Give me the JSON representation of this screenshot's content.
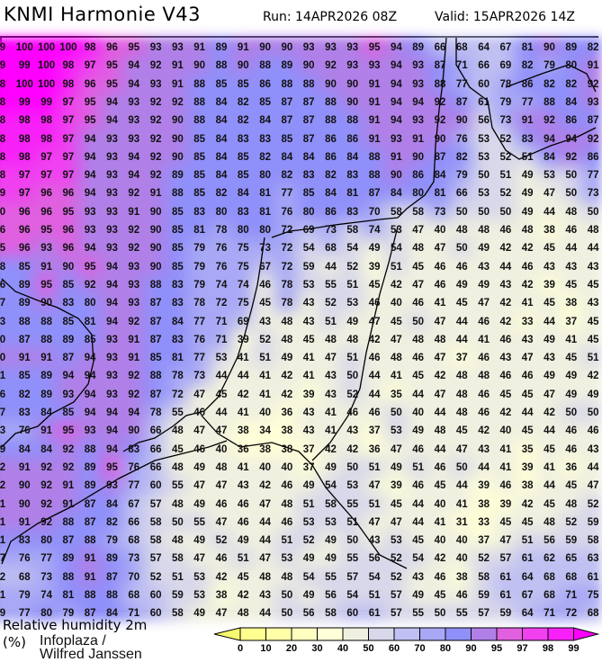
{
  "header": {
    "title": "KNMI Harmonie V43",
    "run": "Run: 14APR2026 08Z",
    "valid": "Valid: 15APR2026 14Z"
  },
  "legend": {
    "title_line1": "Relative humidity 2m",
    "title_line2": "(%)",
    "ticks": [
      "0",
      "10",
      "20",
      "30",
      "40",
      "50",
      "60",
      "70",
      "80",
      "90",
      "95",
      "97",
      "98",
      "99"
    ],
    "colors": [
      "#ffff90",
      "#ffffa8",
      "#ffffc0",
      "#ffffd8",
      "#f0f0e0",
      "#d8d8ea",
      "#c0c0f2",
      "#a8a8f6",
      "#9090fa",
      "#b080e8",
      "#e060e0",
      "#f040f0",
      "#f820f8"
    ],
    "low_color": "#f8f870",
    "high_color": "#ff00ff"
  },
  "map": {
    "credit": "Infoplaza / Wilfred Janssen",
    "coastline_color": "#000000",
    "grid": [
      [
        "9",
        "100",
        "100",
        "100",
        "98",
        "96",
        "95",
        "93",
        "93",
        "91",
        "89",
        "91",
        "90",
        "90",
        "93",
        "93",
        "93",
        "95",
        "94",
        "89",
        "66",
        "68",
        "64",
        "67",
        "81",
        "90",
        "89",
        "82"
      ],
      [
        "9",
        "99",
        "100",
        "98",
        "97",
        "95",
        "94",
        "92",
        "91",
        "90",
        "88",
        "90",
        "88",
        "89",
        "90",
        "92",
        "93",
        "93",
        "94",
        "93",
        "87",
        "71",
        "66",
        "69",
        "82",
        "79",
        "80",
        "91"
      ],
      [
        "8",
        "100",
        "100",
        "98",
        "96",
        "95",
        "94",
        "93",
        "91",
        "88",
        "85",
        "85",
        "86",
        "88",
        "88",
        "90",
        "90",
        "91",
        "94",
        "93",
        "88",
        "77",
        "60",
        "78",
        "86",
        "82",
        "82",
        "92"
      ],
      [
        "8",
        "99",
        "99",
        "97",
        "95",
        "94",
        "93",
        "92",
        "92",
        "88",
        "84",
        "82",
        "85",
        "87",
        "87",
        "88",
        "90",
        "91",
        "94",
        "94",
        "92",
        "87",
        "61",
        "79",
        "77",
        "88",
        "84",
        "93"
      ],
      [
        "8",
        "98",
        "98",
        "97",
        "95",
        "94",
        "93",
        "92",
        "90",
        "88",
        "84",
        "82",
        "84",
        "87",
        "87",
        "88",
        "88",
        "91",
        "94",
        "93",
        "92",
        "90",
        "56",
        "73",
        "91",
        "92",
        "86",
        "87"
      ],
      [
        "8",
        "98",
        "98",
        "97",
        "94",
        "93",
        "93",
        "92",
        "90",
        "85",
        "84",
        "83",
        "83",
        "85",
        "87",
        "86",
        "86",
        "91",
        "93",
        "91",
        "90",
        "76",
        "53",
        "52",
        "83",
        "94",
        "94",
        "92"
      ],
      [
        "8",
        "98",
        "97",
        "97",
        "94",
        "93",
        "94",
        "92",
        "90",
        "85",
        "84",
        "85",
        "82",
        "84",
        "84",
        "86",
        "84",
        "88",
        "91",
        "90",
        "87",
        "82",
        "53",
        "52",
        "51",
        "84",
        "92",
        "86"
      ],
      [
        "8",
        "97",
        "97",
        "97",
        "94",
        "93",
        "94",
        "92",
        "89",
        "85",
        "84",
        "85",
        "80",
        "82",
        "83",
        "82",
        "83",
        "88",
        "90",
        "86",
        "84",
        "79",
        "50",
        "51",
        "49",
        "53",
        "50",
        "77"
      ],
      [
        "9",
        "97",
        "96",
        "96",
        "94",
        "93",
        "92",
        "91",
        "88",
        "85",
        "82",
        "84",
        "81",
        "77",
        "85",
        "84",
        "81",
        "87",
        "84",
        "80",
        "81",
        "66",
        "53",
        "52",
        "49",
        "47",
        "50",
        "73"
      ],
      [
        "0",
        "96",
        "96",
        "95",
        "93",
        "93",
        "91",
        "90",
        "85",
        "83",
        "80",
        "83",
        "81",
        "76",
        "80",
        "86",
        "83",
        "70",
        "58",
        "58",
        "73",
        "50",
        "50",
        "50",
        "49",
        "44",
        "48",
        "50"
      ],
      [
        "6",
        "96",
        "95",
        "96",
        "93",
        "93",
        "92",
        "90",
        "85",
        "81",
        "78",
        "80",
        "80",
        "72",
        "69",
        "73",
        "58",
        "74",
        "53",
        "47",
        "40",
        "48",
        "48",
        "46",
        "48",
        "38",
        "46",
        "48"
      ],
      [
        "5",
        "96",
        "93",
        "96",
        "94",
        "93",
        "92",
        "90",
        "85",
        "79",
        "76",
        "75",
        "73",
        "72",
        "54",
        "68",
        "54",
        "49",
        "54",
        "48",
        "47",
        "50",
        "49",
        "42",
        "42",
        "45",
        "44",
        "44"
      ],
      [
        "8",
        "85",
        "91",
        "90",
        "95",
        "94",
        "93",
        "90",
        "85",
        "79",
        "76",
        "75",
        "67",
        "72",
        "59",
        "44",
        "52",
        "39",
        "51",
        "45",
        "46",
        "46",
        "43",
        "44",
        "46",
        "43",
        "43",
        "43"
      ],
      [
        "6",
        "89",
        "95",
        "85",
        "92",
        "94",
        "93",
        "88",
        "83",
        "79",
        "74",
        "74",
        "46",
        "78",
        "53",
        "55",
        "51",
        "45",
        "42",
        "47",
        "46",
        "49",
        "49",
        "43",
        "42",
        "39",
        "45",
        "45"
      ],
      [
        "7",
        "89",
        "90",
        "83",
        "80",
        "94",
        "93",
        "87",
        "83",
        "78",
        "72",
        "75",
        "45",
        "78",
        "43",
        "52",
        "53",
        "46",
        "40",
        "46",
        "41",
        "45",
        "47",
        "42",
        "41",
        "45",
        "38",
        "43"
      ],
      [
        "3",
        "88",
        "88",
        "85",
        "81",
        "94",
        "92",
        "87",
        "84",
        "77",
        "71",
        "69",
        "43",
        "48",
        "43",
        "51",
        "49",
        "47",
        "45",
        "50",
        "47",
        "44",
        "46",
        "42",
        "33",
        "44",
        "37",
        "45"
      ],
      [
        "0",
        "87",
        "88",
        "89",
        "85",
        "93",
        "91",
        "87",
        "83",
        "76",
        "71",
        "39",
        "52",
        "48",
        "45",
        "48",
        "48",
        "42",
        "47",
        "48",
        "48",
        "44",
        "41",
        "46",
        "43",
        "49",
        "41",
        "45"
      ],
      [
        "0",
        "91",
        "91",
        "87",
        "94",
        "93",
        "91",
        "85",
        "81",
        "77",
        "53",
        "41",
        "51",
        "49",
        "41",
        "47",
        "51",
        "46",
        "48",
        "46",
        "47",
        "37",
        "46",
        "43",
        "47",
        "43",
        "45",
        "51"
      ],
      [
        "1",
        "85",
        "89",
        "94",
        "94",
        "93",
        "92",
        "88",
        "78",
        "73",
        "44",
        "44",
        "41",
        "42",
        "41",
        "43",
        "50",
        "44",
        "41",
        "45",
        "42",
        "48",
        "48",
        "46",
        "46",
        "49",
        "49",
        "42"
      ],
      [
        "6",
        "82",
        "89",
        "93",
        "94",
        "93",
        "92",
        "87",
        "72",
        "47",
        "45",
        "42",
        "41",
        "42",
        "39",
        "43",
        "52",
        "44",
        "35",
        "44",
        "47",
        "48",
        "46",
        "45",
        "45",
        "47",
        "49",
        "49"
      ],
      [
        "7",
        "83",
        "84",
        "85",
        "94",
        "94",
        "94",
        "78",
        "55",
        "46",
        "44",
        "41",
        "40",
        "36",
        "43",
        "41",
        "46",
        "46",
        "50",
        "40",
        "44",
        "48",
        "46",
        "42",
        "44",
        "42",
        "50",
        "50"
      ],
      [
        "3",
        "76",
        "91",
        "95",
        "93",
        "94",
        "90",
        "66",
        "48",
        "47",
        "47",
        "38",
        "34",
        "38",
        "43",
        "41",
        "43",
        "37",
        "53",
        "49",
        "48",
        "45",
        "42",
        "40",
        "45",
        "44",
        "46",
        "46"
      ],
      [
        "9",
        "84",
        "84",
        "92",
        "88",
        "94",
        "83",
        "66",
        "45",
        "46",
        "40",
        "36",
        "38",
        "38",
        "37",
        "42",
        "42",
        "36",
        "47",
        "46",
        "44",
        "47",
        "43",
        "41",
        "35",
        "45",
        "46",
        "43"
      ],
      [
        "2",
        "91",
        "92",
        "92",
        "89",
        "95",
        "76",
        "66",
        "48",
        "49",
        "48",
        "41",
        "40",
        "40",
        "37",
        "49",
        "50",
        "51",
        "49",
        "51",
        "46",
        "50",
        "44",
        "41",
        "39",
        "41",
        "36",
        "44"
      ],
      [
        "2",
        "90",
        "92",
        "91",
        "89",
        "93",
        "77",
        "60",
        "55",
        "47",
        "47",
        "43",
        "42",
        "46",
        "49",
        "54",
        "53",
        "47",
        "39",
        "46",
        "45",
        "44",
        "39",
        "46",
        "38",
        "44",
        "45",
        "47"
      ],
      [
        "1",
        "90",
        "92",
        "91",
        "87",
        "84",
        "67",
        "57",
        "48",
        "49",
        "46",
        "46",
        "47",
        "48",
        "51",
        "58",
        "55",
        "51",
        "45",
        "44",
        "40",
        "41",
        "38",
        "39",
        "42",
        "45",
        "48",
        "52"
      ],
      [
        "1",
        "91",
        "92",
        "88",
        "87",
        "82",
        "66",
        "58",
        "50",
        "55",
        "47",
        "46",
        "44",
        "46",
        "53",
        "53",
        "51",
        "47",
        "47",
        "44",
        "41",
        "31",
        "33",
        "45",
        "45",
        "48",
        "52",
        "59"
      ],
      [
        "1",
        "83",
        "80",
        "87",
        "88",
        "79",
        "68",
        "58",
        "48",
        "49",
        "52",
        "49",
        "44",
        "51",
        "52",
        "49",
        "50",
        "43",
        "53",
        "45",
        "40",
        "40",
        "37",
        "47",
        "51",
        "56",
        "59",
        "58"
      ],
      [
        "7",
        "76",
        "77",
        "89",
        "91",
        "89",
        "73",
        "57",
        "58",
        "47",
        "46",
        "51",
        "47",
        "53",
        "49",
        "49",
        "55",
        "56",
        "52",
        "54",
        "42",
        "40",
        "52",
        "57",
        "61",
        "62",
        "65",
        "63"
      ],
      [
        "2",
        "68",
        "73",
        "88",
        "91",
        "87",
        "70",
        "52",
        "51",
        "53",
        "42",
        "45",
        "48",
        "48",
        "54",
        "55",
        "57",
        "54",
        "52",
        "43",
        "46",
        "38",
        "58",
        "61",
        "64",
        "68",
        "68",
        "61"
      ],
      [
        "1",
        "79",
        "74",
        "81",
        "88",
        "88",
        "68",
        "60",
        "59",
        "53",
        "38",
        "42",
        "43",
        "50",
        "49",
        "56",
        "54",
        "51",
        "57",
        "49",
        "45",
        "46",
        "59",
        "61",
        "67",
        "68",
        "71",
        "75"
      ],
      [
        "9",
        "77",
        "80",
        "79",
        "87",
        "84",
        "71",
        "60",
        "58",
        "49",
        "47",
        "48",
        "44",
        "50",
        "56",
        "58",
        "60",
        "61",
        "57",
        "55",
        "50",
        "55",
        "57",
        "59",
        "64",
        "71",
        "72",
        "68"
      ]
    ]
  }
}
